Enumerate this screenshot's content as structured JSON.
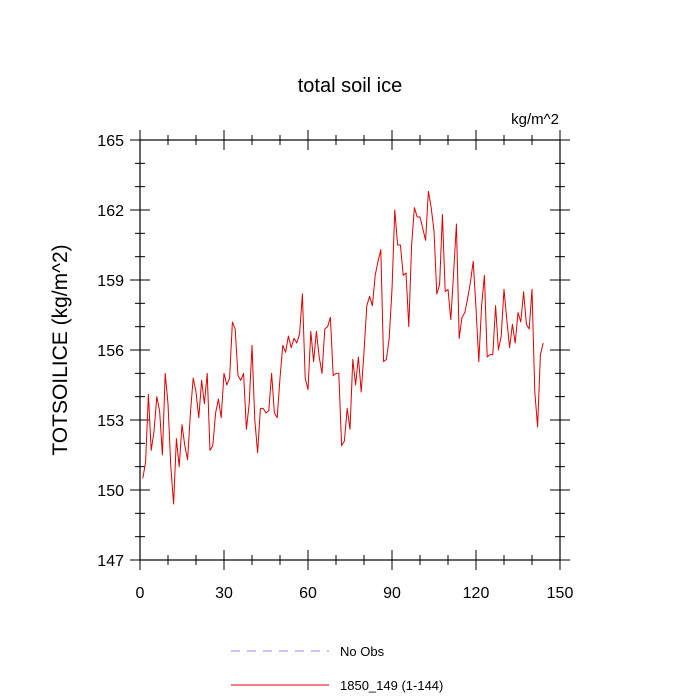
{
  "chart_data": {
    "type": "line",
    "title": "total soil ice",
    "units": "kg/m^2",
    "ylabel": "TOTSOILICE  (kg/m^2)",
    "xlabel": "",
    "xlim": [
      0,
      150
    ],
    "ylim": [
      147,
      165
    ],
    "xticks": [
      0,
      30,
      60,
      90,
      120,
      150
    ],
    "yticks": [
      147,
      150,
      153,
      156,
      159,
      162,
      165
    ],
    "grid": false,
    "legend_position": "bottom",
    "series": [
      {
        "name": "No Obs",
        "color": "#8c8cff",
        "style": "dashed",
        "values": []
      },
      {
        "name": "1850_149 (1-144)",
        "color": "#e00000",
        "style": "solid",
        "x_start": 1,
        "values": [
          150.5,
          151.2,
          154.1,
          151.7,
          152.5,
          154.0,
          153.4,
          151.5,
          155.0,
          153.7,
          151.0,
          149.4,
          152.2,
          151.0,
          152.8,
          151.9,
          151.3,
          153.3,
          154.8,
          154.2,
          153.1,
          154.7,
          153.7,
          155.0,
          151.7,
          151.9,
          153.3,
          153.9,
          153.1,
          155.0,
          154.5,
          154.8,
          157.2,
          156.9,
          154.9,
          154.7,
          155.0,
          152.6,
          153.7,
          156.2,
          153.0,
          151.6,
          153.5,
          153.5,
          153.3,
          153.4,
          155.0,
          153.3,
          153.1,
          154.8,
          156.2,
          155.9,
          156.6,
          156.1,
          156.5,
          156.3,
          156.7,
          158.4,
          154.8,
          154.3,
          156.8,
          155.5,
          156.8,
          155.7,
          155.0,
          156.9,
          157.0,
          157.4,
          154.9,
          155.0,
          155.0,
          151.9,
          152.1,
          153.5,
          152.6,
          155.6,
          154.5,
          155.7,
          154.2,
          155.9,
          157.9,
          158.3,
          157.9,
          159.2,
          159.8,
          160.3,
          155.5,
          155.6,
          156.5,
          158.6,
          162.0,
          160.5,
          160.5,
          159.2,
          159.3,
          157.0,
          160.5,
          162.1,
          161.7,
          161.7,
          161.2,
          160.7,
          162.8,
          162.1,
          161.1,
          158.4,
          158.8,
          161.8,
          158.5,
          158.6,
          157.3,
          159.3,
          161.4,
          156.5,
          157.4,
          157.6,
          158.2,
          158.9,
          159.8,
          157.8,
          155.5,
          157.9,
          159.2,
          155.7,
          155.8,
          155.8,
          157.9,
          156.0,
          156.6,
          158.6,
          157.3,
          156.1,
          157.1,
          156.3,
          157.6,
          157.2,
          158.5,
          157.1,
          156.9,
          158.6,
          154.2,
          152.7,
          155.8,
          156.3
        ]
      }
    ]
  }
}
